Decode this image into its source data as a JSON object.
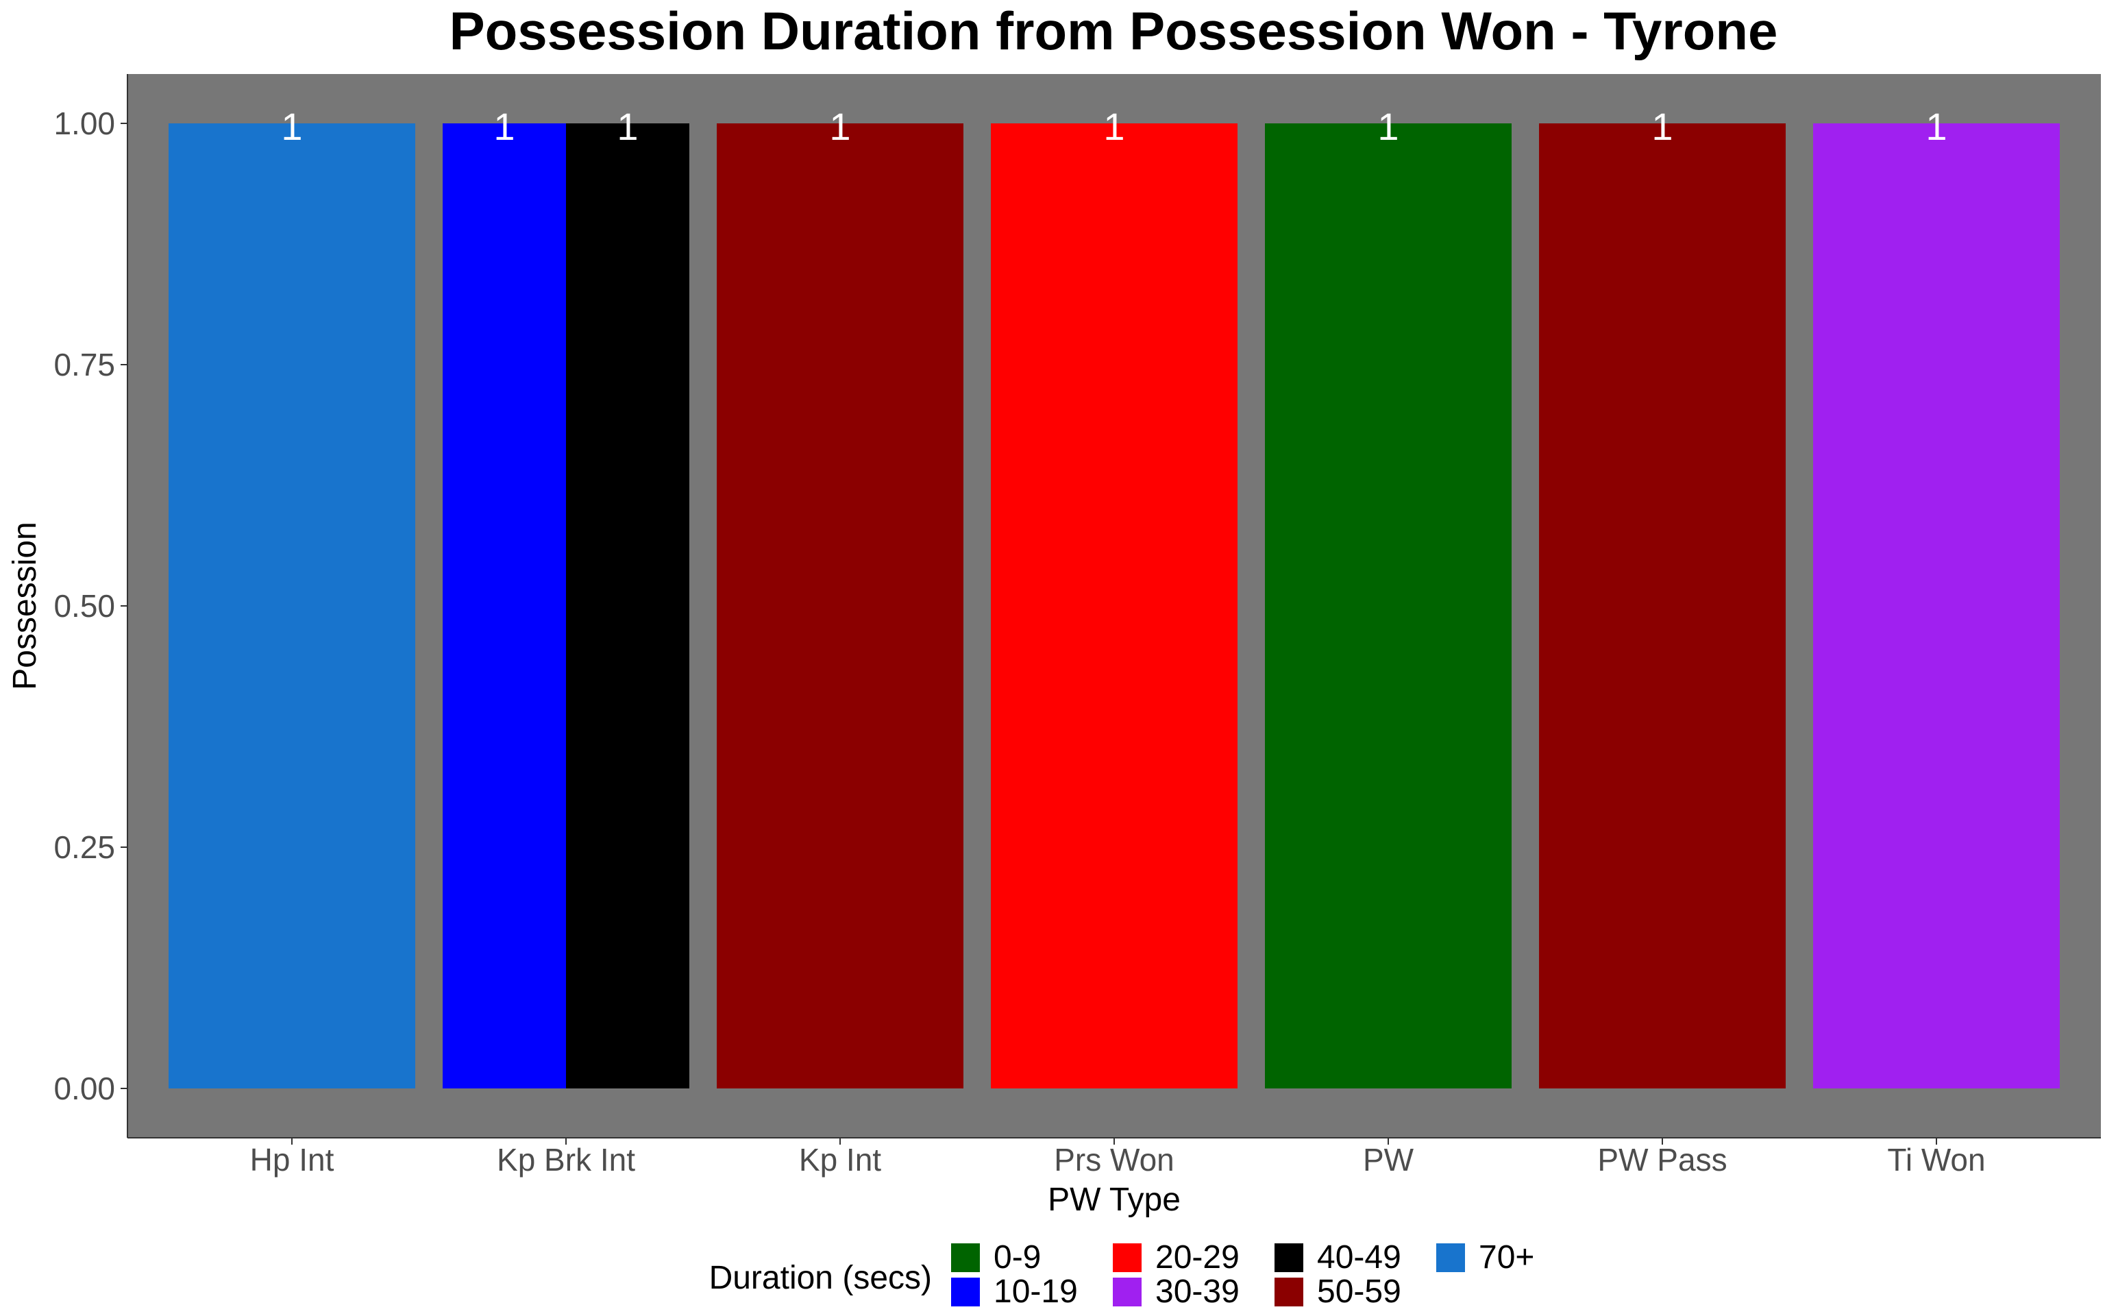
{
  "chart_data": {
    "type": "bar",
    "title": "Possession Duration from Possession Won - Tyrone",
    "xlabel": "PW Type",
    "ylabel": "Possession",
    "ylim": [
      0,
      1
    ],
    "yticks": [
      "0.00",
      "0.25",
      "0.50",
      "0.75",
      "1.00"
    ],
    "categories": [
      "Hp Int",
      "Kp Brk Int",
      "Kp Int",
      "Prs Won",
      "PW",
      "PW Pass",
      "Ti Won"
    ],
    "bars": [
      {
        "category": "Hp Int",
        "group": "70+",
        "value": 1,
        "label": "1"
      },
      {
        "category": "Kp Brk Int",
        "group": "10-19",
        "value": 1,
        "label": "1"
      },
      {
        "category": "Kp Brk Int",
        "group": "40-49",
        "value": 1,
        "label": "1"
      },
      {
        "category": "Kp Int",
        "group": "50-59",
        "value": 1,
        "label": "1"
      },
      {
        "category": "Prs Won",
        "group": "20-29",
        "value": 1,
        "label": "1"
      },
      {
        "category": "PW",
        "group": "0-9",
        "value": 1,
        "label": "1"
      },
      {
        "category": "PW Pass",
        "group": "50-59",
        "value": 1,
        "label": "1"
      },
      {
        "category": "Ti Won",
        "group": "30-39",
        "value": 1,
        "label": "1"
      }
    ],
    "legend": {
      "title": "Duration (secs)",
      "position": "bottom",
      "items": [
        {
          "label": "0-9",
          "color": "#006400"
        },
        {
          "label": "10-19",
          "color": "#0000ff"
        },
        {
          "label": "20-29",
          "color": "#ff0000"
        },
        {
          "label": "30-39",
          "color": "#a020f0"
        },
        {
          "label": "40-49",
          "color": "#000000"
        },
        {
          "label": "50-59",
          "color": "#8b0000"
        },
        {
          "label": "70+",
          "color": "#1874cd"
        }
      ]
    },
    "panel_background": "#777777",
    "grid": false
  }
}
